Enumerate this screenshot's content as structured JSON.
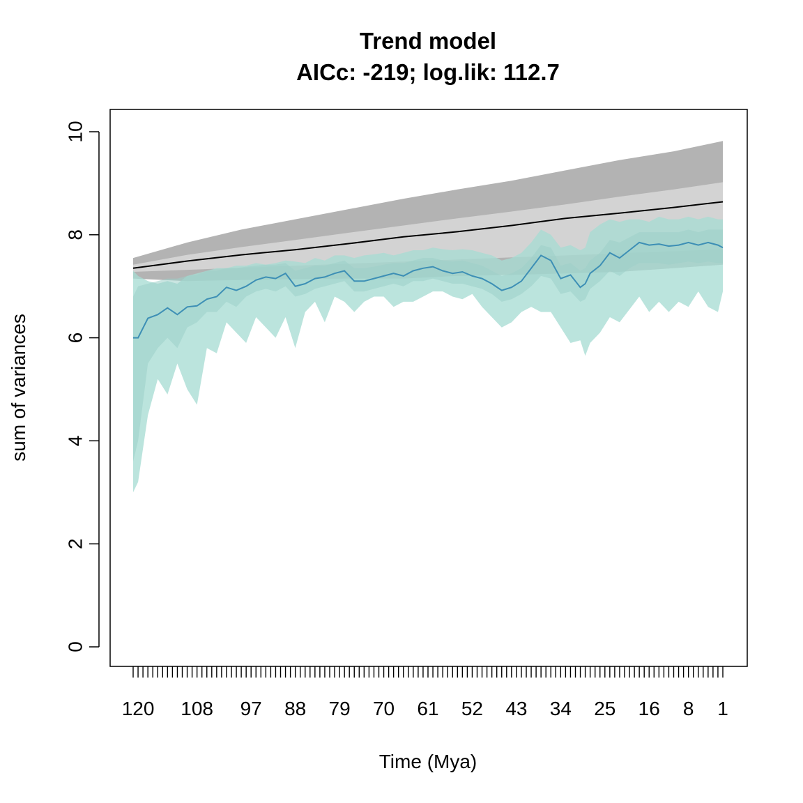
{
  "chart_data": {
    "type": "area",
    "title": "Trend model",
    "subtitle": "AICc: -219; log.lik: 112.7",
    "xlabel": "Time (Mya)",
    "ylabel": "sum of variances",
    "ylim": [
      0,
      10
    ],
    "yticks": [
      0,
      2,
      4,
      6,
      8,
      10
    ],
    "x_start": 121,
    "x_end": 1,
    "x_tick_labels": [
      "120",
      "108",
      "97",
      "88",
      "79",
      "70",
      "61",
      "52",
      "43",
      "34",
      "25",
      "16",
      "8",
      "1"
    ],
    "x_tick_label_positions": [
      120,
      108,
      97,
      88,
      79,
      70,
      61,
      52,
      43,
      34,
      25,
      16,
      8,
      1
    ],
    "grid": false,
    "legend": "none",
    "colors": {
      "outer_band": "#b3b3b3",
      "inner_band": "#d3d3d3",
      "model_line": "#000000",
      "observed_outer_band": "#a8dcd4",
      "observed_inner_band": "#9ccfc8",
      "observed_line": "#3d8fb5"
    },
    "model": {
      "x": [
        121,
        110,
        99,
        88,
        77,
        66,
        55,
        44,
        33,
        22,
        11,
        1
      ],
      "median": [
        7.35,
        7.49,
        7.61,
        7.71,
        7.83,
        7.96,
        8.06,
        8.18,
        8.32,
        8.42,
        8.53,
        8.64
      ],
      "inner_lower": [
        7.28,
        7.32,
        7.36,
        7.4,
        7.44,
        7.48,
        7.52,
        7.56,
        7.6,
        7.64,
        7.68,
        7.72
      ],
      "inner_upper": [
        7.42,
        7.61,
        7.76,
        7.9,
        8.04,
        8.18,
        8.32,
        8.45,
        8.59,
        8.74,
        8.88,
        9.02
      ],
      "outer_lower": [
        7.15,
        7.1,
        7.12,
        7.14,
        7.15,
        7.15,
        7.2,
        7.22,
        7.25,
        7.28,
        7.35,
        7.42
      ],
      "outer_upper": [
        7.55,
        7.85,
        8.1,
        8.3,
        8.5,
        8.7,
        8.88,
        9.05,
        9.25,
        9.45,
        9.62,
        9.82
      ]
    },
    "observed": {
      "x": [
        121,
        120,
        118,
        116,
        114,
        112,
        110,
        108,
        106,
        104,
        102,
        100,
        98,
        96,
        94,
        92,
        90,
        88,
        86,
        84,
        82,
        80,
        78,
        76,
        74,
        72,
        70,
        68,
        66,
        64,
        62,
        60,
        58,
        56,
        54,
        52,
        50,
        48,
        46,
        44,
        42,
        40,
        38,
        36,
        34,
        32,
        30,
        29,
        28,
        26,
        24,
        22,
        20,
        18,
        16,
        14,
        12,
        10,
        8,
        6,
        4,
        2,
        1
      ],
      "median": [
        6.0,
        6.0,
        6.38,
        6.45,
        6.58,
        6.45,
        6.6,
        6.62,
        6.75,
        6.8,
        6.98,
        6.92,
        7.0,
        7.12,
        7.18,
        7.15,
        7.25,
        7.0,
        7.05,
        7.15,
        7.18,
        7.25,
        7.3,
        7.1,
        7.1,
        7.15,
        7.2,
        7.25,
        7.2,
        7.3,
        7.35,
        7.38,
        7.3,
        7.25,
        7.28,
        7.2,
        7.15,
        7.05,
        6.92,
        6.98,
        7.1,
        7.35,
        7.6,
        7.5,
        7.15,
        7.22,
        6.98,
        7.05,
        7.25,
        7.4,
        7.65,
        7.55,
        7.7,
        7.85,
        7.8,
        7.82,
        7.78,
        7.8,
        7.85,
        7.8,
        7.85,
        7.8,
        7.75
      ],
      "inner_lower": [
        3.6,
        4.0,
        5.5,
        5.8,
        6.0,
        5.8,
        6.2,
        6.3,
        6.5,
        6.5,
        6.7,
        6.6,
        6.8,
        6.9,
        6.95,
        6.9,
        7.0,
        6.8,
        6.85,
        6.95,
        7.0,
        7.05,
        7.1,
        6.9,
        6.9,
        6.95,
        7.0,
        7.05,
        7.0,
        7.1,
        7.1,
        7.15,
        7.1,
        7.05,
        7.05,
        7.0,
        6.95,
        6.85,
        6.7,
        6.75,
        6.85,
        7.0,
        7.2,
        7.15,
        6.85,
        6.9,
        6.7,
        6.75,
        6.95,
        7.1,
        7.3,
        7.2,
        7.35,
        7.45,
        7.45,
        7.45,
        7.42,
        7.45,
        7.48,
        7.45,
        7.48,
        7.45,
        7.45
      ],
      "inner_upper": [
        6.8,
        7.0,
        7.05,
        7.1,
        7.15,
        7.15,
        7.2,
        7.22,
        7.3,
        7.3,
        7.35,
        7.35,
        7.38,
        7.4,
        7.42,
        7.42,
        7.45,
        7.3,
        7.35,
        7.4,
        7.4,
        7.45,
        7.5,
        7.35,
        7.35,
        7.38,
        7.42,
        7.45,
        7.45,
        7.5,
        7.55,
        7.55,
        7.5,
        7.48,
        7.5,
        7.45,
        7.4,
        7.3,
        7.2,
        7.25,
        7.35,
        7.55,
        7.8,
        7.75,
        7.4,
        7.45,
        7.3,
        7.35,
        7.5,
        7.65,
        7.9,
        7.85,
        7.95,
        8.05,
        8.05,
        8.05,
        8.05,
        8.05,
        8.1,
        8.05,
        8.1,
        8.1,
        8.1
      ],
      "outer_lower": [
        3.0,
        3.2,
        4.5,
        5.2,
        4.9,
        5.5,
        5.0,
        4.7,
        5.8,
        5.7,
        6.3,
        6.1,
        5.9,
        6.4,
        6.2,
        6.0,
        6.4,
        5.8,
        6.5,
        6.7,
        6.3,
        6.8,
        6.7,
        6.5,
        6.7,
        6.8,
        6.8,
        6.6,
        6.7,
        6.7,
        6.8,
        6.9,
        6.9,
        6.8,
        6.75,
        6.85,
        6.6,
        6.4,
        6.2,
        6.3,
        6.5,
        6.6,
        6.5,
        6.5,
        6.2,
        5.9,
        5.95,
        5.65,
        5.9,
        6.1,
        6.4,
        6.3,
        6.55,
        6.8,
        6.5,
        6.7,
        6.5,
        6.7,
        6.6,
        6.9,
        6.6,
        6.5,
        6.9
      ],
      "outer_upper": [
        7.3,
        7.2,
        7.1,
        7.05,
        7.1,
        7.05,
        7.2,
        7.25,
        7.3,
        7.35,
        7.35,
        7.4,
        7.4,
        7.45,
        7.42,
        7.45,
        7.5,
        7.48,
        7.45,
        7.55,
        7.5,
        7.6,
        7.6,
        7.55,
        7.6,
        7.62,
        7.65,
        7.6,
        7.65,
        7.7,
        7.7,
        7.75,
        7.72,
        7.7,
        7.72,
        7.7,
        7.65,
        7.6,
        7.5,
        7.55,
        7.65,
        7.85,
        8.1,
        8.0,
        7.75,
        7.8,
        7.7,
        7.75,
        8.05,
        8.2,
        8.3,
        8.25,
        8.3,
        8.3,
        8.25,
        8.35,
        8.3,
        8.3,
        8.35,
        8.3,
        8.35,
        8.3,
        8.3
      ]
    }
  }
}
